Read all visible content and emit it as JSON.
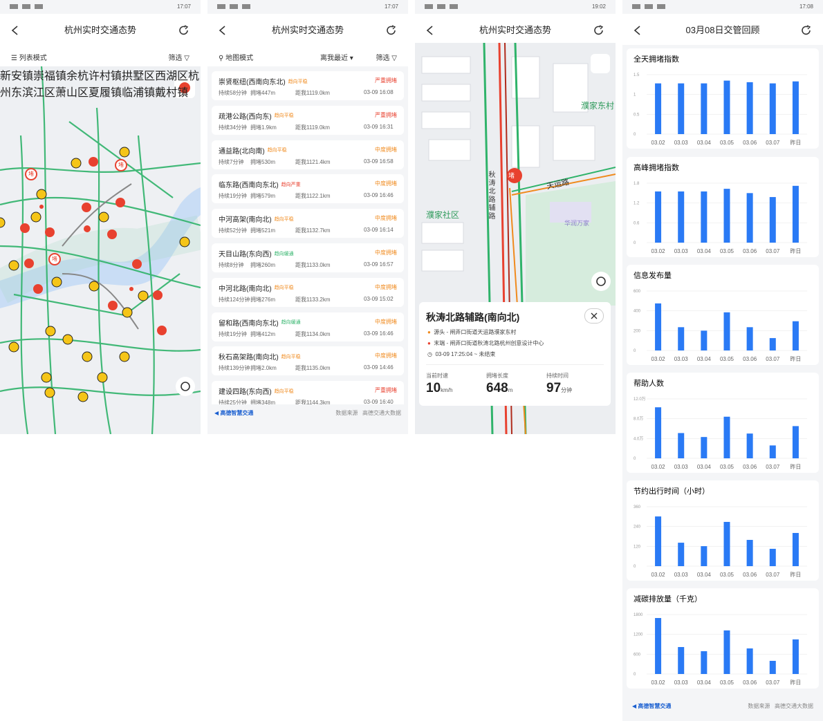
{
  "screens": [
    {
      "time": "17:07",
      "title": "杭州实时交通态势",
      "mode": "列表模式",
      "filter": "筛选",
      "map_labels": [
        "新安镇",
        "崇福镇",
        "余杭",
        "许村镇",
        "拱墅区",
        "西湖区",
        "杭州东",
        "滨江区",
        "萧山区",
        "夏履镇",
        "临浦镇",
        "戴村镇"
      ],
      "marker": "堵"
    },
    {
      "time": "17:07",
      "title": "杭州实时交通态势",
      "mode": "地图模式",
      "sort": "离我最近",
      "filter": "筛选",
      "items": [
        {
          "name": "崇贤枢纽(西南向东北)",
          "trend": "趋向平稳",
          "trend_color": "#f08a1d",
          "status": "严重拥堵",
          "status_color": "#e8412f",
          "duration": "持续58分钟",
          "length": "拥堵447m",
          "distance": "距我1119.0km",
          "time": "03-09 16:08"
        },
        {
          "name": "疏港公路(西向东)",
          "trend": "趋向平稳",
          "trend_color": "#f08a1d",
          "status": "严重拥堵",
          "status_color": "#e8412f",
          "duration": "持续34分钟",
          "length": "拥堵1.9km",
          "distance": "距我1119.0km",
          "time": "03-09 16:31"
        },
        {
          "name": "通益路(北向南)",
          "trend": "趋向平稳",
          "trend_color": "#f08a1d",
          "status": "中度拥堵",
          "status_color": "#f08a1d",
          "duration": "持续7分钟",
          "length": "拥堵530m",
          "distance": "距我1121.4km",
          "time": "03-09 16:58"
        },
        {
          "name": "临东路(西南向东北)",
          "trend": "趋向严重",
          "trend_color": "#e8412f",
          "status": "中度拥堵",
          "status_color": "#f08a1d",
          "duration": "持续19分钟",
          "length": "拥堵579m",
          "distance": "距我1122.1km",
          "time": "03-09 16:46"
        },
        {
          "name": "中河高架(南向北)",
          "trend": "趋向平稳",
          "trend_color": "#f08a1d",
          "status": "中度拥堵",
          "status_color": "#f08a1d",
          "duration": "持续52分钟",
          "length": "拥堵521m",
          "distance": "距我1132.7km",
          "time": "03-09 16:14"
        },
        {
          "name": "天目山路(东向西)",
          "trend": "趋向缓通",
          "trend_color": "#2fb36a",
          "status": "中度拥堵",
          "status_color": "#f08a1d",
          "duration": "持续8分钟",
          "length": "拥堵260m",
          "distance": "距我1133.0km",
          "time": "03-09 16:57"
        },
        {
          "name": "中河北路(南向北)",
          "trend": "趋向平稳",
          "trend_color": "#f08a1d",
          "status": "中度拥堵",
          "status_color": "#f08a1d",
          "duration": "持续124分钟",
          "length": "拥堵276m",
          "distance": "距我1133.2km",
          "time": "03-09 15:02"
        },
        {
          "name": "留和路(西南向东北)",
          "trend": "趋向缓通",
          "trend_color": "#2fb36a",
          "status": "中度拥堵",
          "status_color": "#f08a1d",
          "duration": "持续19分钟",
          "length": "拥堵412m",
          "distance": "距我1134.0km",
          "time": "03-09 16:46"
        },
        {
          "name": "秋石高架路(南向北)",
          "trend": "趋向平稳",
          "trend_color": "#f08a1d",
          "status": "中度拥堵",
          "status_color": "#f08a1d",
          "duration": "持续139分钟",
          "length": "拥堵2.0km",
          "distance": "距我1135.0km",
          "time": "03-09 14:46"
        },
        {
          "name": "建设四路(东向西)",
          "trend": "趋向平稳",
          "trend_color": "#f08a1d",
          "status": "严重拥堵",
          "status_color": "#e8412f",
          "duration": "持续25分钟",
          "length": "拥堵348m",
          "distance": "距我1144.3km",
          "time": "03-09 16:40"
        }
      ],
      "brand": "高德智慧交通",
      "source_label": "数据来源",
      "source": "高德交通大数据"
    },
    {
      "time": "19:02",
      "title": "杭州实时交通态势",
      "map_labels": [
        "濮家东村",
        "天运路",
        "秋涛北路辅路",
        "濮家社区",
        "华润万家"
      ],
      "marker": "堵",
      "card": {
        "road": "秋涛北路辅路(南向北)",
        "start": "源头 - 闸弄口街道天运路濮家东村",
        "end": "末端 - 闸弄口街道秋涛北路杭州创意设计中心",
        "period": "03-09 17:25:04 ~ 未结束",
        "stats": [
          {
            "label": "当前时速",
            "value": "10",
            "unit": "km/h"
          },
          {
            "label": "拥堵长度",
            "value": "648",
            "unit": "m"
          },
          {
            "label": "持续时间",
            "value": "97",
            "unit": "分钟"
          }
        ]
      }
    },
    {
      "time": "17:08",
      "title": "03月08日交管回顾",
      "brand": "高德智慧交通",
      "source_label": "数据来源",
      "source": "高德交通大数据"
    }
  ],
  "chart_data": [
    {
      "type": "bar",
      "title": "全天拥堵指数",
      "categories": [
        "03.02",
        "03.03",
        "03.04",
        "03.05",
        "03.06",
        "03.07",
        "昨日"
      ],
      "values": [
        1.28,
        1.28,
        1.28,
        1.35,
        1.31,
        1.28,
        1.33
      ],
      "color": "#2a7af5",
      "ylim": [
        0,
        1.5
      ],
      "yticks": [
        0,
        0.5,
        1,
        1.5
      ],
      "grid": true
    },
    {
      "type": "bar",
      "title": "高峰拥堵指数",
      "categories": [
        "03.02",
        "03.03",
        "03.04",
        "03.05",
        "03.06",
        "03.07",
        "昨日"
      ],
      "values": [
        1.55,
        1.55,
        1.55,
        1.63,
        1.5,
        1.38,
        1.72
      ],
      "color": "#2a7af5",
      "ylim": [
        0,
        1.8
      ],
      "yticks": [
        0,
        0.6,
        1.2,
        1.8
      ],
      "grid": true
    },
    {
      "type": "bar",
      "title": "信息发布量",
      "categories": [
        "03.02",
        "03.03",
        "03.04",
        "03.05",
        "03.06",
        "03.07",
        "昨日"
      ],
      "values": [
        475,
        235,
        200,
        385,
        235,
        125,
        295
      ],
      "color": "#2a7af5",
      "ylim": [
        0,
        600
      ],
      "yticks": [
        0,
        200,
        400,
        600
      ],
      "grid": true
    },
    {
      "type": "bar",
      "title": "帮助人数",
      "categories": [
        "03.02",
        "03.03",
        "03.04",
        "03.05",
        "03.06",
        "03.07",
        "昨日"
      ],
      "values": [
        103000,
        51000,
        43000,
        84000,
        50000,
        26000,
        65000
      ],
      "color": "#2a7af5",
      "ylim": [
        0,
        120000
      ],
      "yticks": [
        0,
        {
          "value": 40000,
          "label": "4.0万"
        },
        {
          "value": 80000,
          "label": "8.0万"
        },
        {
          "value": 120000,
          "label": "12.0万"
        }
      ],
      "grid": true
    },
    {
      "type": "bar",
      "title": "节约出行时间（小时）",
      "categories": [
        "03.02",
        "03.03",
        "03.04",
        "03.05",
        "03.06",
        "03.07",
        "昨日"
      ],
      "values": [
        301,
        142,
        121,
        268,
        159,
        105,
        201
      ],
      "color": "#2a7af5",
      "ylim": [
        0,
        360
      ],
      "yticks": [
        0,
        120,
        240,
        360
      ],
      "grid": true
    },
    {
      "type": "bar",
      "title": "减碳排放量（千克）",
      "categories": [
        "03.02",
        "03.03",
        "03.04",
        "03.05",
        "03.06",
        "03.07",
        "昨日"
      ],
      "values": [
        1695,
        816,
        690,
        1319,
        774,
        398,
        1047
      ],
      "color": "#2a7af5",
      "ylim": [
        0,
        1800
      ],
      "yticks": [
        0,
        600,
        1200,
        1800
      ],
      "grid": true
    }
  ]
}
